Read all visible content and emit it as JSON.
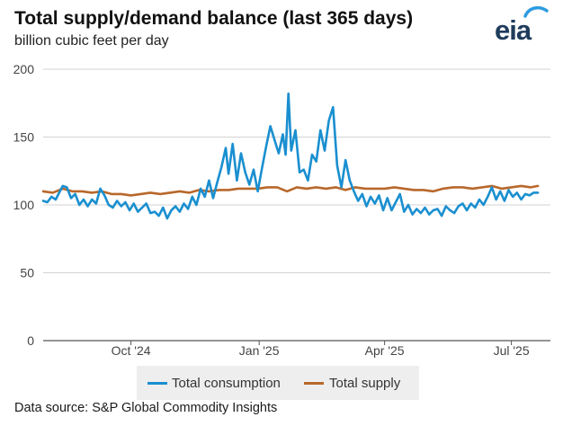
{
  "title": "Total supply/demand balance (last 365 days)",
  "subtitle": "billion cubic feet per day",
  "logo": {
    "text": "eia",
    "icon": "eia-logo"
  },
  "source": "Data source: S&P Global Commodity Insights",
  "colors": {
    "consumption": "#1a8fd0",
    "supply": "#b8682b",
    "grid": "#d3d3d3"
  },
  "chart_data": {
    "type": "line",
    "title": "Total supply/demand balance (last 365 days)",
    "subtitle": "billion cubic feet per day",
    "xlabel": "",
    "ylabel": "",
    "ylim": [
      0,
      200
    ],
    "yticks": [
      0,
      50,
      100,
      150,
      200
    ],
    "xlim": [
      "2024-07-30",
      "2025-07-29"
    ],
    "xticks": [
      {
        "date": "2024-10-01",
        "label": "Oct '24"
      },
      {
        "date": "2025-01-01",
        "label": "Jan '25"
      },
      {
        "date": "2025-04-01",
        "label": "Apr '25"
      },
      {
        "date": "2025-07-01",
        "label": "Jul '25"
      }
    ],
    "grid": "horizontal",
    "legend": "bottom",
    "series": [
      {
        "name": "Total consumption",
        "color": "#1a8fd0",
        "points": [
          [
            "2024-07-30",
            103
          ],
          [
            "2024-08-02",
            102
          ],
          [
            "2024-08-05",
            106
          ],
          [
            "2024-08-08",
            104
          ],
          [
            "2024-08-11",
            110
          ],
          [
            "2024-08-13",
            114
          ],
          [
            "2024-08-16",
            113
          ],
          [
            "2024-08-19",
            105
          ],
          [
            "2024-08-22",
            108
          ],
          [
            "2024-08-25",
            100
          ],
          [
            "2024-08-28",
            104
          ],
          [
            "2024-08-31",
            99
          ],
          [
            "2024-09-03",
            104
          ],
          [
            "2024-09-06",
            101
          ],
          [
            "2024-09-09",
            112
          ],
          [
            "2024-09-12",
            107
          ],
          [
            "2024-09-15",
            100
          ],
          [
            "2024-09-18",
            98
          ],
          [
            "2024-09-21",
            103
          ],
          [
            "2024-09-24",
            99
          ],
          [
            "2024-09-27",
            102
          ],
          [
            "2024-09-30",
            96
          ],
          [
            "2024-10-03",
            101
          ],
          [
            "2024-10-06",
            95
          ],
          [
            "2024-10-09",
            98
          ],
          [
            "2024-10-12",
            101
          ],
          [
            "2024-10-15",
            94
          ],
          [
            "2024-10-18",
            95
          ],
          [
            "2024-10-21",
            92
          ],
          [
            "2024-10-24",
            98
          ],
          [
            "2024-10-27",
            90
          ],
          [
            "2024-10-30",
            96
          ],
          [
            "2024-11-02",
            99
          ],
          [
            "2024-11-05",
            95
          ],
          [
            "2024-11-08",
            101
          ],
          [
            "2024-11-11",
            97
          ],
          [
            "2024-11-14",
            106
          ],
          [
            "2024-11-17",
            100
          ],
          [
            "2024-11-20",
            112
          ],
          [
            "2024-11-23",
            106
          ],
          [
            "2024-11-26",
            118
          ],
          [
            "2024-11-29",
            105
          ],
          [
            "2024-12-02",
            117
          ],
          [
            "2024-12-05",
            128
          ],
          [
            "2024-12-08",
            142
          ],
          [
            "2024-12-10",
            123
          ],
          [
            "2024-12-13",
            145
          ],
          [
            "2024-12-16",
            118
          ],
          [
            "2024-12-19",
            138
          ],
          [
            "2024-12-22",
            124
          ],
          [
            "2024-12-25",
            115
          ],
          [
            "2024-12-28",
            126
          ],
          [
            "2024-12-31",
            110
          ],
          [
            "2025-01-03",
            127
          ],
          [
            "2025-01-06",
            143
          ],
          [
            "2025-01-09",
            158
          ],
          [
            "2025-01-12",
            148
          ],
          [
            "2025-01-15",
            138
          ],
          [
            "2025-01-18",
            152
          ],
          [
            "2025-01-20",
            137
          ],
          [
            "2025-01-22",
            182
          ],
          [
            "2025-01-24",
            140
          ],
          [
            "2025-01-27",
            155
          ],
          [
            "2025-01-30",
            124
          ],
          [
            "2025-02-02",
            126
          ],
          [
            "2025-02-05",
            118
          ],
          [
            "2025-02-08",
            137
          ],
          [
            "2025-02-11",
            132
          ],
          [
            "2025-02-14",
            155
          ],
          [
            "2025-02-17",
            140
          ],
          [
            "2025-02-20",
            162
          ],
          [
            "2025-02-23",
            172
          ],
          [
            "2025-02-26",
            129
          ],
          [
            "2025-03-01",
            113
          ],
          [
            "2025-03-04",
            133
          ],
          [
            "2025-03-07",
            118
          ],
          [
            "2025-03-10",
            110
          ],
          [
            "2025-03-13",
            103
          ],
          [
            "2025-03-16",
            108
          ],
          [
            "2025-03-19",
            99
          ],
          [
            "2025-03-22",
            106
          ],
          [
            "2025-03-25",
            101
          ],
          [
            "2025-03-28",
            107
          ],
          [
            "2025-03-31",
            96
          ],
          [
            "2025-04-03",
            105
          ],
          [
            "2025-04-06",
            96
          ],
          [
            "2025-04-09",
            102
          ],
          [
            "2025-04-12",
            108
          ],
          [
            "2025-04-15",
            95
          ],
          [
            "2025-04-18",
            100
          ],
          [
            "2025-04-21",
            93
          ],
          [
            "2025-04-24",
            97
          ],
          [
            "2025-04-27",
            94
          ],
          [
            "2025-04-30",
            98
          ],
          [
            "2025-05-03",
            93
          ],
          [
            "2025-05-06",
            96
          ],
          [
            "2025-05-09",
            97
          ],
          [
            "2025-05-12",
            92
          ],
          [
            "2025-05-15",
            99
          ],
          [
            "2025-05-18",
            96
          ],
          [
            "2025-05-21",
            94
          ],
          [
            "2025-05-24",
            99
          ],
          [
            "2025-05-27",
            101
          ],
          [
            "2025-05-30",
            96
          ],
          [
            "2025-06-02",
            101
          ],
          [
            "2025-06-05",
            98
          ],
          [
            "2025-06-08",
            104
          ],
          [
            "2025-06-11",
            100
          ],
          [
            "2025-06-14",
            106
          ],
          [
            "2025-06-17",
            113
          ],
          [
            "2025-06-20",
            104
          ],
          [
            "2025-06-23",
            110
          ],
          [
            "2025-06-26",
            103
          ],
          [
            "2025-06-29",
            111
          ],
          [
            "2025-07-02",
            106
          ],
          [
            "2025-07-05",
            109
          ],
          [
            "2025-07-08",
            104
          ],
          [
            "2025-07-11",
            108
          ],
          [
            "2025-07-14",
            107
          ],
          [
            "2025-07-17",
            109
          ],
          [
            "2025-07-20",
            109
          ]
        ]
      },
      {
        "name": "Total supply",
        "color": "#b8682b",
        "points": [
          [
            "2024-07-30",
            110
          ],
          [
            "2024-08-06",
            109
          ],
          [
            "2024-08-13",
            112
          ],
          [
            "2024-08-20",
            110
          ],
          [
            "2024-08-27",
            110
          ],
          [
            "2024-09-03",
            109
          ],
          [
            "2024-09-10",
            110
          ],
          [
            "2024-09-17",
            108
          ],
          [
            "2024-09-24",
            108
          ],
          [
            "2024-10-01",
            107
          ],
          [
            "2024-10-08",
            108
          ],
          [
            "2024-10-15",
            109
          ],
          [
            "2024-10-22",
            108
          ],
          [
            "2024-10-29",
            109
          ],
          [
            "2024-11-05",
            110
          ],
          [
            "2024-11-12",
            109
          ],
          [
            "2024-11-19",
            111
          ],
          [
            "2024-11-26",
            110
          ],
          [
            "2024-12-03",
            111
          ],
          [
            "2024-12-10",
            111
          ],
          [
            "2024-12-17",
            112
          ],
          [
            "2024-12-24",
            112
          ],
          [
            "2024-12-31",
            112
          ],
          [
            "2025-01-07",
            113
          ],
          [
            "2025-01-14",
            113
          ],
          [
            "2025-01-21",
            110
          ],
          [
            "2025-01-28",
            113
          ],
          [
            "2025-02-04",
            112
          ],
          [
            "2025-02-11",
            113
          ],
          [
            "2025-02-18",
            112
          ],
          [
            "2025-02-25",
            113
          ],
          [
            "2025-03-04",
            111
          ],
          [
            "2025-03-11",
            113
          ],
          [
            "2025-03-18",
            112
          ],
          [
            "2025-03-25",
            112
          ],
          [
            "2025-04-01",
            112
          ],
          [
            "2025-04-08",
            113
          ],
          [
            "2025-04-15",
            112
          ],
          [
            "2025-04-22",
            111
          ],
          [
            "2025-04-29",
            111
          ],
          [
            "2025-05-06",
            110
          ],
          [
            "2025-05-13",
            112
          ],
          [
            "2025-05-20",
            113
          ],
          [
            "2025-05-27",
            113
          ],
          [
            "2025-06-03",
            112
          ],
          [
            "2025-06-10",
            113
          ],
          [
            "2025-06-17",
            114
          ],
          [
            "2025-06-24",
            112
          ],
          [
            "2025-07-01",
            113
          ],
          [
            "2025-07-08",
            114
          ],
          [
            "2025-07-15",
            113
          ],
          [
            "2025-07-20",
            114
          ]
        ]
      }
    ]
  }
}
